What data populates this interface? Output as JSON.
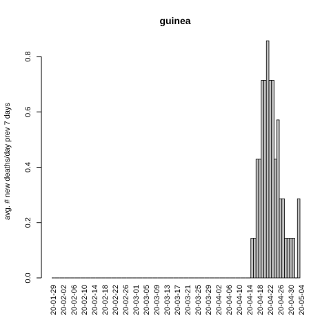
{
  "chart_data": {
    "type": "bar",
    "title": "guinea",
    "xlabel": "",
    "ylabel": "avg. # new deaths/day prev  7  days",
    "ylim": [
      0,
      0.86
    ],
    "y_ticks": [
      0.0,
      0.2,
      0.4,
      0.6,
      0.8
    ],
    "y_tick_labels": [
      "0.0",
      "0.2",
      "0.4",
      "0.6",
      "0.8"
    ],
    "x_tick_labels": [
      "20-01-29",
      "20-02-02",
      "20-02-06",
      "20-02-10",
      "20-02-14",
      "20-02-18",
      "20-02-22",
      "20-02-26",
      "20-03-01",
      "20-03-05",
      "20-03-09",
      "20-03-13",
      "20-03-17",
      "20-03-21",
      "20-03-25",
      "20-03-29",
      "20-04-02",
      "20-04-06",
      "20-04-10",
      "20-04-14",
      "20-04-18",
      "20-04-22",
      "20-04-26",
      "20-04-30",
      "20-05-04"
    ],
    "x_start": "2020-01-29",
    "x_end": "2020-05-05",
    "bar_color": "#bebebe",
    "bar_border": "#000000",
    "values": [
      0,
      0,
      0,
      0,
      0,
      0,
      0,
      0,
      0,
      0,
      0,
      0,
      0,
      0,
      0,
      0,
      0,
      0,
      0,
      0,
      0,
      0,
      0,
      0,
      0,
      0,
      0,
      0,
      0,
      0,
      0,
      0,
      0,
      0,
      0,
      0,
      0,
      0,
      0,
      0,
      0,
      0,
      0,
      0,
      0,
      0,
      0,
      0,
      0,
      0,
      0,
      0,
      0,
      0,
      0,
      0,
      0,
      0,
      0,
      0,
      0,
      0,
      0,
      0,
      0,
      0,
      0,
      0,
      0,
      0,
      0,
      0,
      0,
      0,
      0,
      0,
      0,
      0.143,
      0.143,
      0.429,
      0.429,
      0.714,
      0.714,
      0.857,
      0.714,
      0.714,
      0.429,
      0.571,
      0.286,
      0.286,
      0.143,
      0.143,
      0.143,
      0.143,
      0,
      0.286
    ]
  }
}
